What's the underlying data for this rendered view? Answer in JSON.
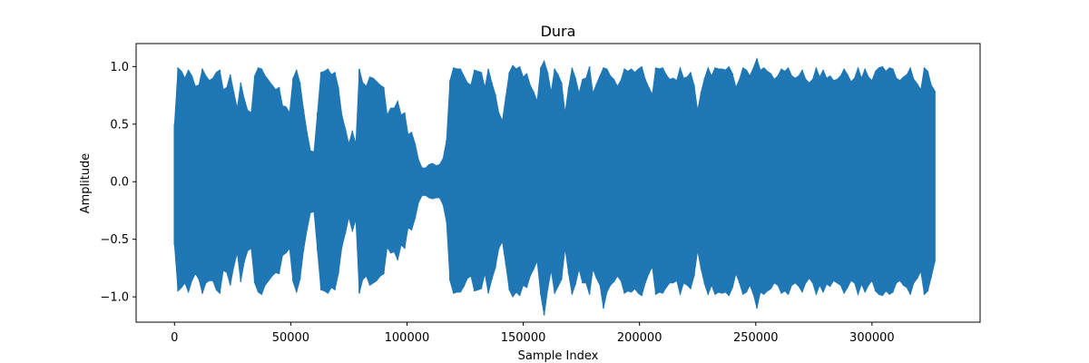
{
  "chart_data": {
    "type": "line",
    "title": "Dura",
    "xlabel": "Sample Index",
    "ylabel": "Amplitude",
    "xlim": [
      -16500,
      346500
    ],
    "ylim": [
      -1.22,
      1.2
    ],
    "x_ticks": [
      0,
      50000,
      100000,
      150000,
      200000,
      250000,
      300000
    ],
    "x_tick_labels": [
      "0",
      "50000",
      "100000",
      "150000",
      "200000",
      "250000",
      "300000"
    ],
    "y_ticks": [
      -1.0,
      -0.5,
      0.0,
      0.5,
      1.0
    ],
    "y_tick_labels": [
      "−1.0",
      "−0.5",
      "0.0",
      "0.5",
      "1.0"
    ],
    "grid": false,
    "series": [
      {
        "color": "#1f77b4",
        "x_start": 0,
        "x_step": 1500,
        "upper": [
          0.5,
          0.99,
          0.96,
          0.9,
          0.97,
          0.92,
          0.83,
          0.84,
          0.98,
          0.92,
          0.88,
          0.9,
          0.95,
          0.97,
          0.8,
          0.82,
          0.93,
          0.78,
          0.64,
          0.86,
          0.72,
          0.62,
          0.6,
          0.92,
          0.99,
          0.98,
          0.92,
          0.88,
          0.84,
          0.8,
          0.82,
          0.66,
          0.65,
          0.6,
          0.9,
          0.97,
          0.86,
          0.63,
          0.43,
          0.27,
          0.26,
          0.6,
          0.95,
          0.96,
          0.98,
          0.93,
          0.95,
          0.82,
          0.58,
          0.46,
          0.33,
          0.44,
          0.33,
          0.98,
          0.86,
          0.83,
          0.91,
          0.9,
          0.87,
          0.84,
          0.82,
          0.58,
          0.64,
          0.64,
          0.7,
          0.58,
          0.6,
          0.41,
          0.43,
          0.33,
          0.19,
          0.12,
          0.12,
          0.15,
          0.16,
          0.14,
          0.15,
          0.2,
          0.36,
          0.88,
          0.99,
          0.98,
          0.98,
          0.92,
          0.86,
          0.84,
          0.97,
          0.96,
          0.95,
          0.82,
          0.98,
          0.86,
          0.76,
          0.6,
          0.53,
          0.74,
          0.95,
          1.01,
          0.98,
          1.0,
          0.91,
          0.94,
          0.84,
          0.78,
          0.7,
          0.99,
          1.05,
          0.95,
          0.78,
          0.98,
          0.93,
          0.86,
          0.6,
          0.82,
          0.99,
          0.9,
          0.77,
          0.89,
          0.9,
          1.0,
          0.77,
          0.85,
          0.92,
          0.99,
          0.98,
          0.92,
          0.89,
          0.83,
          0.88,
          0.98,
          0.96,
          0.98,
          0.95,
          0.98,
          1.0,
          0.89,
          0.82,
          0.76,
          0.99,
          0.98,
          0.99,
          0.93,
          0.89,
          0.9,
          0.88,
          0.99,
          0.9,
          0.91,
          0.95,
          0.84,
          0.62,
          0.78,
          0.9,
          0.99,
          0.92,
          0.99,
          0.98,
          0.98,
          0.97,
          1.0,
          0.94,
          0.82,
          0.89,
          0.99,
          0.97,
          0.92,
          0.99,
          1.07,
          0.97,
          0.99,
          0.96,
          0.94,
          0.89,
          0.92,
          0.98,
          0.96,
          0.99,
          0.92,
          0.9,
          0.92,
          0.97,
          0.89,
          0.86,
          0.89,
          0.99,
          0.91,
          0.97,
          0.9,
          0.92,
          0.88,
          0.89,
          0.92,
          0.98,
          0.93,
          0.87,
          0.9,
          0.99,
          0.9,
          0.98,
          0.91,
          0.88,
          0.96,
          0.99,
          1.0,
          0.96,
          0.99,
          0.98,
          0.9,
          0.88,
          0.91,
          0.93,
          0.99,
          0.89,
          0.85,
          0.8,
          0.99,
          0.96,
          0.84,
          0.79
        ],
        "lower": [
          -0.55,
          -0.95,
          -0.92,
          -0.88,
          -0.96,
          -0.86,
          -0.8,
          -0.85,
          -0.97,
          -0.88,
          -0.86,
          -0.86,
          -0.94,
          -0.97,
          -0.77,
          -0.79,
          -0.9,
          -0.74,
          -0.62,
          -0.87,
          -0.7,
          -0.6,
          -0.58,
          -0.88,
          -0.96,
          -0.98,
          -0.9,
          -0.86,
          -0.82,
          -0.79,
          -0.8,
          -0.64,
          -0.62,
          -0.58,
          -0.87,
          -0.96,
          -0.85,
          -0.6,
          -0.42,
          -0.27,
          -0.26,
          -0.6,
          -0.94,
          -0.95,
          -0.97,
          -0.92,
          -0.94,
          -0.8,
          -0.57,
          -0.45,
          -0.31,
          -0.43,
          -0.33,
          -0.97,
          -0.85,
          -0.82,
          -0.9,
          -0.88,
          -0.86,
          -0.82,
          -0.8,
          -0.57,
          -0.62,
          -0.61,
          -0.68,
          -0.55,
          -0.58,
          -0.4,
          -0.42,
          -0.32,
          -0.18,
          -0.12,
          -0.12,
          -0.14,
          -0.15,
          -0.14,
          -0.14,
          -0.2,
          -0.35,
          -0.86,
          -0.97,
          -0.96,
          -0.96,
          -0.91,
          -0.84,
          -0.82,
          -0.95,
          -0.94,
          -0.93,
          -0.8,
          -0.97,
          -0.85,
          -0.75,
          -0.58,
          -0.52,
          -0.72,
          -0.94,
          -1.0,
          -0.96,
          -0.99,
          -0.9,
          -0.92,
          -0.82,
          -0.76,
          -0.69,
          -0.98,
          -1.16,
          -0.94,
          -0.77,
          -0.97,
          -0.91,
          -0.85,
          -0.58,
          -0.8,
          -0.98,
          -0.89,
          -0.76,
          -0.88,
          -0.88,
          -0.98,
          -0.76,
          -0.84,
          -0.9,
          -1.1,
          -0.96,
          -0.9,
          -0.87,
          -0.82,
          -0.86,
          -0.97,
          -0.95,
          -0.96,
          -0.93,
          -0.97,
          -0.99,
          -0.88,
          -0.8,
          -0.74,
          -0.98,
          -0.96,
          -0.97,
          -0.92,
          -0.88,
          -0.88,
          -0.86,
          -0.98,
          -0.88,
          -0.9,
          -0.93,
          -0.82,
          -0.6,
          -0.76,
          -0.89,
          -0.98,
          -0.9,
          -0.98,
          -0.96,
          -0.97,
          -0.96,
          -0.99,
          -0.92,
          -0.8,
          -0.88,
          -0.98,
          -0.96,
          -0.9,
          -0.98,
          -1.1,
          -0.96,
          -0.98,
          -0.95,
          -0.93,
          -0.88,
          -0.9,
          -0.97,
          -0.95,
          -0.98,
          -0.9,
          -0.88,
          -0.91,
          -0.96,
          -0.88,
          -0.84,
          -0.88,
          -0.98,
          -0.9,
          -0.96,
          -0.89,
          -0.91,
          -0.86,
          -0.88,
          -0.9,
          -0.97,
          -0.92,
          -0.86,
          -0.88,
          -0.98,
          -0.89,
          -0.96,
          -0.9,
          -0.86,
          -0.95,
          -0.98,
          -0.99,
          -0.95,
          -0.98,
          -0.96,
          -0.88,
          -0.86,
          -0.9,
          -0.92,
          -0.98,
          -0.88,
          -0.84,
          -0.78,
          -0.98,
          -0.95,
          -0.83,
          -0.7
        ]
      }
    ]
  }
}
